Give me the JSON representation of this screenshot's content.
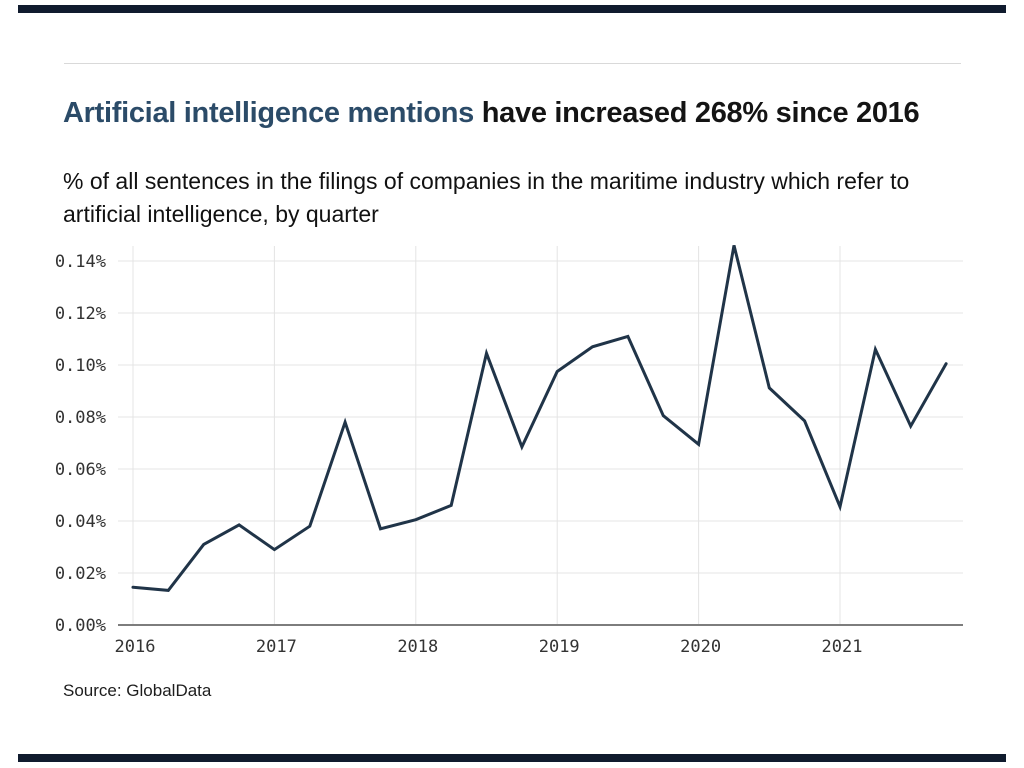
{
  "decor": {
    "edge_bar_color": "#101b2e",
    "divider_color": "#d9d9d9"
  },
  "header": {
    "title_accent": "Artificial intelligence mentions",
    "title_rest": " have increased 268% since 2016",
    "accent_color": "#2b4b68",
    "subtitle": "% of all sentences in the filings of companies in the maritime industry which refer to artificial intelligence, by quarter"
  },
  "chart_data": {
    "type": "line",
    "title": "Artificial intelligence mentions have increased 268% since 2016",
    "subtitle": "% of all sentences in the filings of companies in the maritime industry which refer to artificial intelligence, by quarter",
    "x": [
      "2016 Q1",
      "2016 Q2",
      "2016 Q3",
      "2016 Q4",
      "2017 Q1",
      "2017 Q2",
      "2017 Q3",
      "2017 Q4",
      "2018 Q1",
      "2018 Q2",
      "2018 Q3",
      "2018 Q4",
      "2019 Q1",
      "2019 Q2",
      "2019 Q3",
      "2019 Q4",
      "2020 Q1",
      "2020 Q2",
      "2020 Q3",
      "2020 Q4",
      "2021 Q1",
      "2021 Q2",
      "2021 Q3",
      "2021 Q4"
    ],
    "series": [
      {
        "name": "% of sentences referring to artificial intelligence",
        "values": [
          0.0145,
          0.0133,
          0.031,
          0.0385,
          0.029,
          0.038,
          0.078,
          0.037,
          0.0405,
          0.046,
          0.1045,
          0.0685,
          0.0975,
          0.107,
          0.111,
          0.0805,
          0.0695,
          0.146,
          0.0912,
          0.0785,
          0.0455,
          0.106,
          0.0765,
          0.1005
        ]
      }
    ],
    "ylim": [
      0.0,
      0.15
    ],
    "y_tick_labels": [
      "0.00%",
      "0.02%",
      "0.04%",
      "0.06%",
      "0.08%",
      "0.10%",
      "0.12%",
      "0.14%"
    ],
    "x_tick_labels": [
      "2016",
      "2017",
      "2018",
      "2019",
      "2020",
      "2021"
    ],
    "grid": true,
    "legend": "none",
    "line_color": "#203448",
    "gridline_color": "#e4e4e4",
    "axis_color": "#7d7d7d",
    "tick_color": "#333333"
  },
  "footer": {
    "source": "Source: GlobalData"
  }
}
